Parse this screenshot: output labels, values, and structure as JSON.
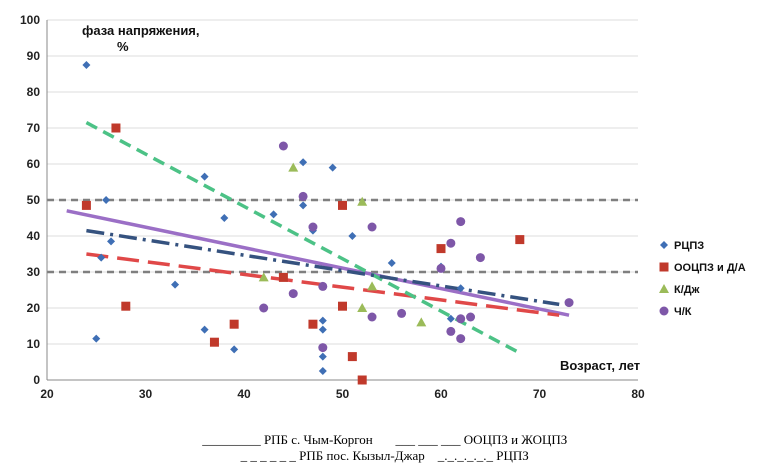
{
  "chart_data": {
    "type": "scatter",
    "ylabel": "фаза напряжения,\n%",
    "ylabel_line1": "фаза напряжения,",
    "ylabel_line2": "%",
    "xlabel": "Возраст, лет",
    "xlim": [
      20,
      80
    ],
    "ylim": [
      0,
      100
    ],
    "xticks": [
      "20",
      "30",
      "40",
      "50",
      "60",
      "70",
      "80"
    ],
    "yticks": [
      "0",
      "10",
      "20",
      "30",
      "40",
      "50",
      "60",
      "70",
      "80",
      "90",
      "100"
    ],
    "legend_position": "right",
    "reference_lines": [
      30,
      50
    ],
    "series": [
      {
        "name": "РЦПЗ",
        "marker": "diamond",
        "color": "#3f6fb5",
        "points": [
          [
            24,
            87.5
          ],
          [
            25,
            11.5
          ],
          [
            25.5,
            34
          ],
          [
            26,
            50
          ],
          [
            26.5,
            38.5
          ],
          [
            33,
            26.5
          ],
          [
            36,
            56.5
          ],
          [
            36,
            14
          ],
          [
            38,
            45
          ],
          [
            39,
            8.5
          ],
          [
            43,
            46
          ],
          [
            46,
            60.5
          ],
          [
            46,
            48.5
          ],
          [
            47,
            41.5
          ],
          [
            48,
            16.5
          ],
          [
            48,
            14
          ],
          [
            48,
            6.5
          ],
          [
            48,
            2.5
          ],
          [
            49,
            59
          ],
          [
            51,
            40
          ],
          [
            55,
            32.5
          ],
          [
            60,
            31.5
          ],
          [
            61,
            17
          ],
          [
            62,
            25.5
          ]
        ]
      },
      {
        "name": "ООЦПЗ и Д/А",
        "marker": "square",
        "color": "#c0392b",
        "points": [
          [
            24,
            48.5
          ],
          [
            27,
            70
          ],
          [
            28,
            20.5
          ],
          [
            37,
            10.5
          ],
          [
            39,
            15.5
          ],
          [
            44,
            28.5
          ],
          [
            47,
            15.5
          ],
          [
            50,
            48.5
          ],
          [
            50,
            20.5
          ],
          [
            51,
            6.5
          ],
          [
            52,
            0
          ],
          [
            60,
            36.5
          ],
          [
            68,
            39
          ]
        ]
      },
      {
        "name": "К/Дж",
        "marker": "triangle",
        "color": "#9bbb59",
        "points": [
          [
            45,
            59
          ],
          [
            52,
            20
          ],
          [
            52,
            49.5
          ],
          [
            53,
            26
          ],
          [
            58,
            16
          ],
          [
            42,
            28.5
          ]
        ]
      },
      {
        "name": "Ч/К",
        "marker": "circle",
        "color": "#7e57a8",
        "points": [
          [
            42,
            20
          ],
          [
            44,
            65
          ],
          [
            45,
            24
          ],
          [
            46,
            51
          ],
          [
            47,
            42.5
          ],
          [
            48,
            9
          ],
          [
            48,
            26
          ],
          [
            53,
            42.5
          ],
          [
            53,
            17.5
          ],
          [
            56,
            18.5
          ],
          [
            60,
            31
          ],
          [
            61,
            38
          ],
          [
            61,
            13.5
          ],
          [
            62,
            44
          ],
          [
            62,
            17
          ],
          [
            62,
            11.5
          ],
          [
            63,
            17.5
          ],
          [
            64,
            34
          ],
          [
            73,
            21.5
          ]
        ]
      }
    ],
    "trendlines": [
      {
        "name": "РПБ с. Чым-Коргон",
        "color": "#9b6fc6",
        "dash": "solid",
        "from": [
          22,
          47
        ],
        "to": [
          73,
          18
        ]
      },
      {
        "name": "ООЦПЗ и ЖОЦПЗ",
        "color": "#e04848",
        "dash": "longdash",
        "from": [
          24,
          35
        ],
        "to": [
          72,
          18
        ]
      },
      {
        "name": "РПБ пос. Кызыл-Джар",
        "color": "#4cc286",
        "dash": "dash",
        "from": [
          24,
          71.5
        ],
        "to": [
          68,
          7.5
        ]
      },
      {
        "name": "РЦПЗ",
        "color": "#35527f",
        "dash": "dashdot",
        "from": [
          24,
          41.5
        ],
        "to": [
          72,
          21
        ]
      }
    ]
  },
  "caption": {
    "line1": {
      "a_marker": "_________",
      "a_text": " РПБ с. Чым-Коргон",
      "b_marker": "___ ___ ___",
      "b_text": " ООЦПЗ и ЖОЦПЗ"
    },
    "line2": {
      "a_marker": "_ _ _ _ _ _",
      "a_text": " РПБ пос. Кызыл-Джар",
      "b_marker": "_._._._._._",
      "b_text": " РЦПЗ"
    }
  }
}
